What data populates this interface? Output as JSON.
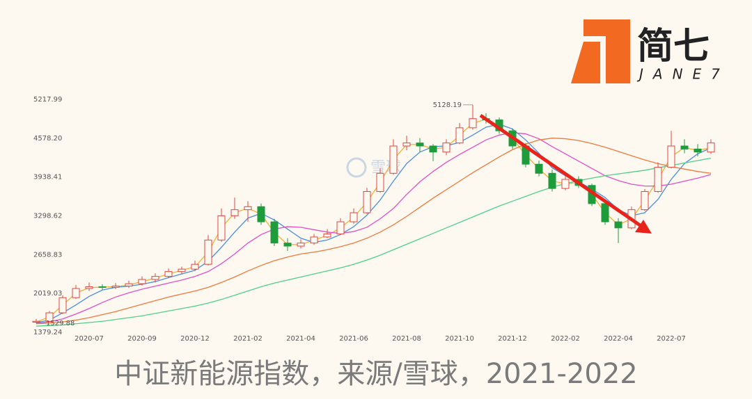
{
  "logo": {
    "name": "简七",
    "sub": "JANE7"
  },
  "chart_data": {
    "type": "candlestick",
    "title": "中证新能源指数，来源/雪球，2021-2022",
    "watermark": "雪球",
    "categories": [
      null,
      null,
      null,
      null,
      "2020-07",
      null,
      null,
      null,
      "2020-09",
      null,
      null,
      null,
      "2020-12",
      null,
      null,
      null,
      "2021-02",
      null,
      null,
      null,
      "2021-04",
      null,
      null,
      null,
      "2021-06",
      null,
      null,
      null,
      "2021-08",
      null,
      null,
      null,
      "2021-10",
      null,
      null,
      null,
      "2021-12",
      null,
      null,
      null,
      "2022-02",
      null,
      null,
      null,
      "2022-04",
      null,
      null,
      null,
      "2022-07",
      null,
      null,
      null
    ],
    "ohlc": [
      [
        1545,
        1600,
        1529.88,
        1560
      ],
      [
        1560,
        1730,
        1550,
        1700
      ],
      [
        1700,
        1990,
        1680,
        1950
      ],
      [
        1950,
        2160,
        1930,
        2100
      ],
      [
        2100,
        2200,
        2060,
        2130
      ],
      [
        2130,
        2170,
        2080,
        2120
      ],
      [
        2120,
        2190,
        2090,
        2140
      ],
      [
        2140,
        2230,
        2110,
        2180
      ],
      [
        2180,
        2300,
        2150,
        2250
      ],
      [
        2250,
        2350,
        2200,
        2300
      ],
      [
        2300,
        2430,
        2270,
        2380
      ],
      [
        2380,
        2460,
        2340,
        2420
      ],
      [
        2420,
        2560,
        2390,
        2500
      ],
      [
        2500,
        2980,
        2480,
        2900
      ],
      [
        2900,
        3420,
        2870,
        3300
      ],
      [
        3300,
        3600,
        3250,
        3400
      ],
      [
        3400,
        3540,
        3200,
        3450
      ],
      [
        3450,
        3500,
        3150,
        3200
      ],
      [
        3200,
        3250,
        2800,
        2850
      ],
      [
        2850,
        2930,
        2720,
        2800
      ],
      [
        2800,
        2910,
        2760,
        2850
      ],
      [
        2850,
        3000,
        2820,
        2950
      ],
      [
        2950,
        3080,
        2930,
        3000
      ],
      [
        3000,
        3260,
        2980,
        3200
      ],
      [
        3200,
        3420,
        3170,
        3350
      ],
      [
        3350,
        3760,
        3330,
        3700
      ],
      [
        3700,
        4080,
        3680,
        4000
      ],
      [
        4000,
        4560,
        3980,
        4450
      ],
      [
        4450,
        4620,
        4380,
        4500
      ],
      [
        4500,
        4580,
        4350,
        4450
      ],
      [
        4450,
        4480,
        4200,
        4350
      ],
      [
        4350,
        4560,
        4300,
        4500
      ],
      [
        4500,
        4830,
        4480,
        4750
      ],
      [
        4750,
        5128.19,
        4720,
        4900
      ],
      [
        4900,
        4990,
        4820,
        4880
      ],
      [
        4880,
        4920,
        4650,
        4700
      ],
      [
        4700,
        4740,
        4400,
        4450
      ],
      [
        4450,
        4500,
        4100,
        4150
      ],
      [
        4150,
        4210,
        3950,
        4000
      ],
      [
        4000,
        4060,
        3700,
        3750
      ],
      [
        3750,
        3980,
        3720,
        3900
      ],
      [
        3900,
        3950,
        3760,
        3800
      ],
      [
        3800,
        3830,
        3460,
        3500
      ],
      [
        3500,
        3540,
        3150,
        3200
      ],
      [
        3200,
        3260,
        2850,
        3100
      ],
      [
        3100,
        3450,
        3080,
        3400
      ],
      [
        3400,
        3740,
        3380,
        3700
      ],
      [
        3700,
        4180,
        3680,
        4100
      ],
      [
        4100,
        4700,
        4080,
        4450
      ],
      [
        4450,
        4560,
        4330,
        4400
      ],
      [
        4400,
        4480,
        4280,
        4350
      ],
      [
        4350,
        4560,
        4320,
        4500
      ]
    ],
    "up_color": "#e0463f",
    "down_color": "#1e9b3a",
    "lines": [
      {
        "color": "#f2b134",
        "values": [
          1550,
          1630,
          1825,
          2025,
          2115,
          2125,
          2130,
          2160,
          2215,
          2275,
          2340,
          2400,
          2460,
          2700,
          3100,
          3350,
          3425,
          3325,
          3025,
          2825,
          2825,
          2900,
          2975,
          3100,
          3275,
          3525,
          3850,
          4225,
          4475,
          4475,
          4400,
          4425,
          4625,
          4825,
          4890,
          4790,
          4575,
          4300,
          4075,
          3875,
          3825,
          3850,
          3650,
          3350,
          3150,
          3250,
          3550,
          3900,
          4275,
          4425,
          4375,
          4425
        ]
      },
      {
        "color": "#4a8fe0",
        "values": [
          1540,
          1580,
          1700,
          1830,
          1970,
          2075,
          2120,
          2140,
          2170,
          2215,
          2280,
          2340,
          2400,
          2550,
          2780,
          3030,
          3260,
          3340,
          3230,
          3080,
          2930,
          2860,
          2900,
          2990,
          3120,
          3310,
          3560,
          3870,
          4160,
          4350,
          4440,
          4450,
          4510,
          4630,
          4760,
          4810,
          4730,
          4550,
          4330,
          4090,
          3960,
          3860,
          3740,
          3600,
          3400,
          3300,
          3350,
          3570,
          3900,
          4160,
          4320,
          4420
        ]
      },
      {
        "color": "#e04fc8",
        "values": [
          1530,
          1550,
          1600,
          1680,
          1770,
          1870,
          1960,
          2030,
          2090,
          2140,
          2190,
          2240,
          2300,
          2380,
          2510,
          2670,
          2850,
          2990,
          3080,
          3120,
          3110,
          3070,
          3030,
          3010,
          3040,
          3110,
          3250,
          3420,
          3650,
          3860,
          4030,
          4180,
          4310,
          4430,
          4550,
          4630,
          4670,
          4650,
          4570,
          4440,
          4320,
          4200,
          4080,
          3960,
          3880,
          3820,
          3790,
          3790,
          3820,
          3870,
          3920,
          3980
        ]
      },
      {
        "color": "#f07a3a",
        "values": [
          1520,
          1530,
          1550,
          1580,
          1620,
          1670,
          1720,
          1780,
          1840,
          1900,
          1960,
          2010,
          2060,
          2120,
          2200,
          2290,
          2390,
          2480,
          2560,
          2620,
          2670,
          2700,
          2740,
          2790,
          2850,
          2930,
          3030,
          3150,
          3290,
          3440,
          3590,
          3730,
          3870,
          4010,
          4140,
          4270,
          4390,
          4480,
          4550,
          4580,
          4570,
          4540,
          4490,
          4430,
          4360,
          4290,
          4220,
          4160,
          4110,
          4070,
          4030,
          4000
        ]
      },
      {
        "color": "#4fd08a",
        "values": [
          1480,
          1490,
          1500,
          1520,
          1540,
          1560,
          1590,
          1620,
          1650,
          1690,
          1730,
          1770,
          1810,
          1860,
          1920,
          1990,
          2060,
          2130,
          2190,
          2240,
          2290,
          2340,
          2390,
          2440,
          2500,
          2570,
          2650,
          2740,
          2830,
          2920,
          3010,
          3100,
          3190,
          3280,
          3370,
          3460,
          3540,
          3620,
          3700,
          3770,
          3830,
          3880,
          3920,
          3960,
          3990,
          4020,
          4050,
          4090,
          4130,
          4170,
          4210,
          4250
        ]
      }
    ],
    "ylim": [
      1379.24,
      5217.99
    ],
    "yticks": [
      1379.24,
      2019.03,
      2658.83,
      3298.62,
      3938.41,
      {
        "value": 4578.2,
        "label": "4578.20"
      },
      5217.99
    ]
  }
}
